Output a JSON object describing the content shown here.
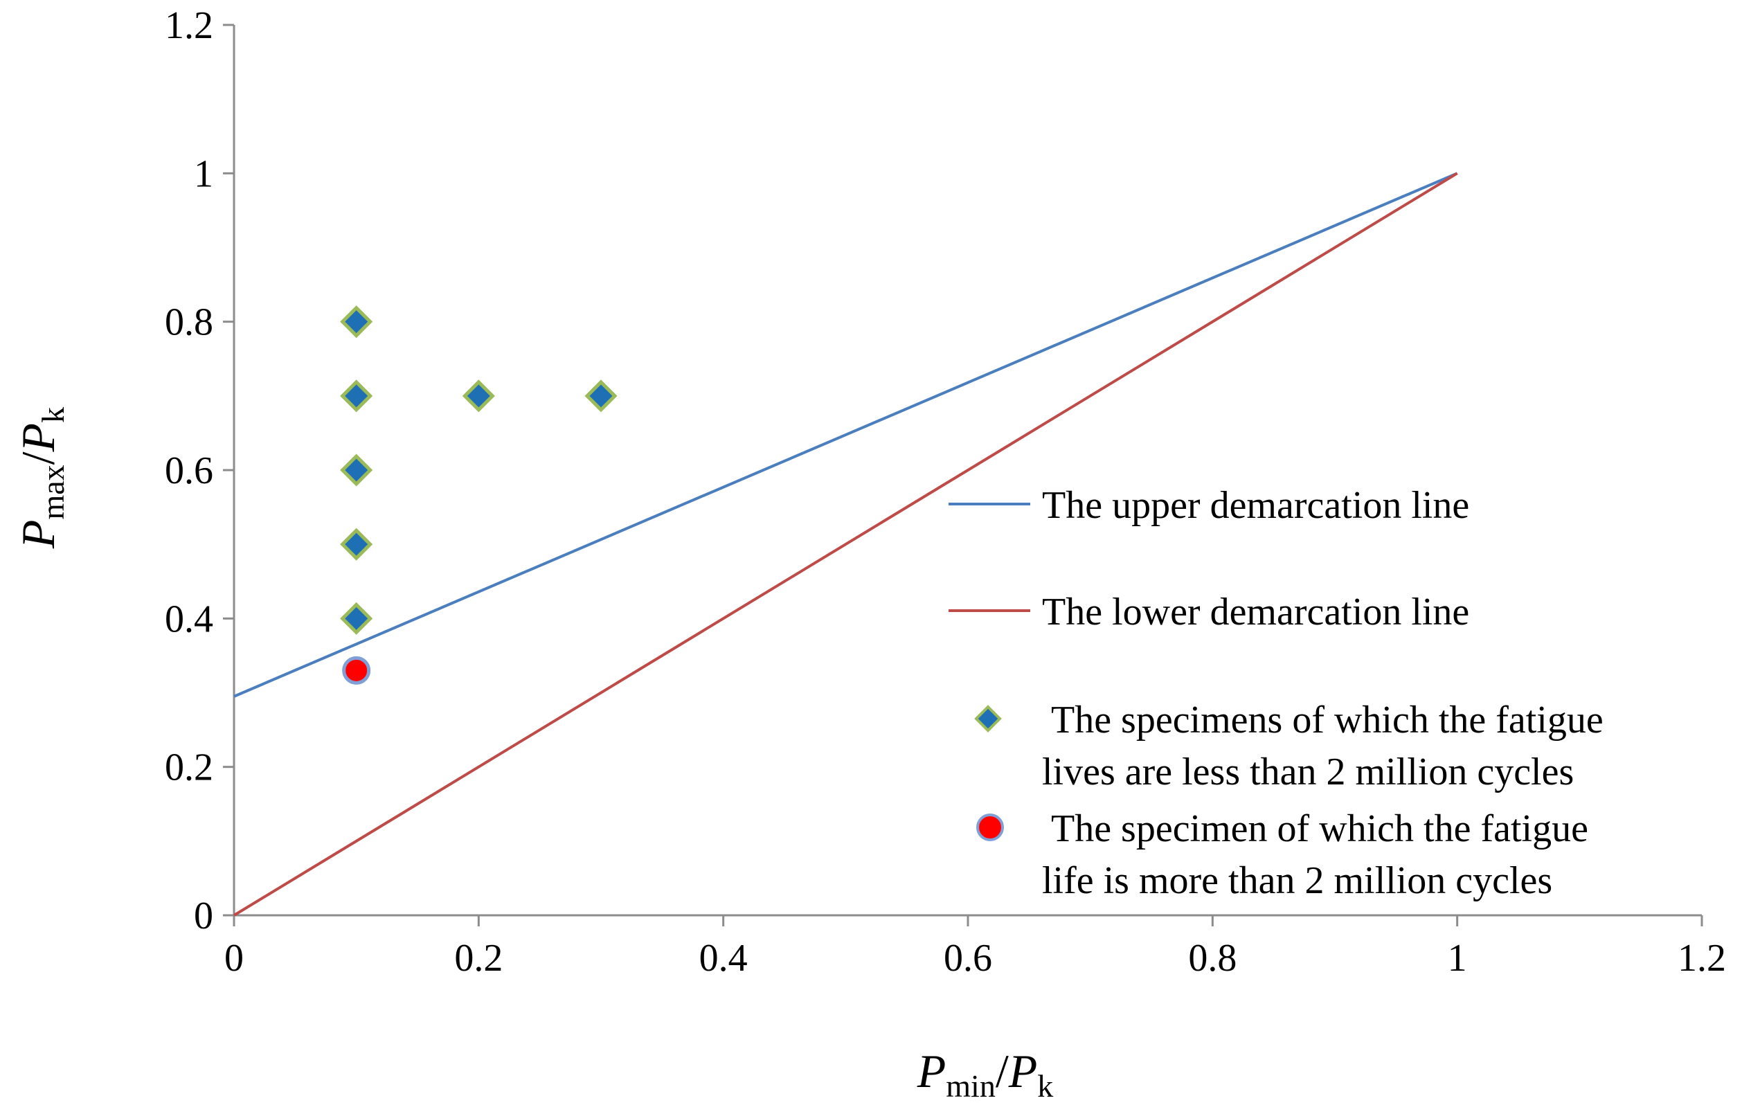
{
  "chart_data": {
    "type": "scatter",
    "title": "",
    "xlabel": {
      "main": "P",
      "sub": "min",
      "sep": "/",
      "main2": "P",
      "sub2": "k"
    },
    "ylabel": {
      "main": "P",
      "sub": "max",
      "sep": "/",
      "main2": "P",
      "sub2": "k"
    },
    "xlim": [
      0,
      1.2
    ],
    "ylim": [
      0,
      1.2
    ],
    "xticks": [
      0,
      0.2,
      0.4,
      0.6,
      0.8,
      1,
      1.2
    ],
    "yticks": [
      0,
      0.2,
      0.4,
      0.6,
      0.8,
      1,
      1.2
    ],
    "xtick_labels": [
      "0",
      "0.2",
      "0.4",
      "0.6",
      "0.8",
      "1",
      "1.2"
    ],
    "ytick_labels": [
      "0",
      "0.2",
      "0.4",
      "0.6",
      "0.8",
      "1",
      "1.2"
    ],
    "grid": false,
    "legend_position": "right",
    "series": [
      {
        "name": "The upper demarcation line",
        "kind": "line",
        "color": "#4a7ebf",
        "x": [
          0,
          1
        ],
        "y": [
          0.295,
          1
        ]
      },
      {
        "name": "The lower demarcation line",
        "kind": "line",
        "color": "#be4b48",
        "x": [
          0,
          1
        ],
        "y": [
          0,
          1
        ]
      },
      {
        "name": "The specimens of which the fatigue lives are less than 2 million cycles",
        "legend_lines": [
          " The specimens of which the fatigue",
          "lives are less than 2 million cycles"
        ],
        "kind": "scatter",
        "marker": "diamond",
        "color": "#1f6fb5",
        "edge_color": "#9bbb59",
        "x": [
          0.1,
          0.1,
          0.1,
          0.1,
          0.1,
          0.2,
          0.3
        ],
        "y": [
          0.8,
          0.7,
          0.6,
          0.5,
          0.4,
          0.7,
          0.7
        ]
      },
      {
        "name": "The specimen of which the fatigue life is more than 2 million cycles",
        "legend_lines": [
          " The specimen of which the fatigue",
          "life is more than 2 million cycles"
        ],
        "kind": "scatter",
        "marker": "circle",
        "color": "#ff0000",
        "edge_color": "#7f9fd6",
        "x": [
          0.1
        ],
        "y": [
          0.33
        ]
      }
    ]
  }
}
